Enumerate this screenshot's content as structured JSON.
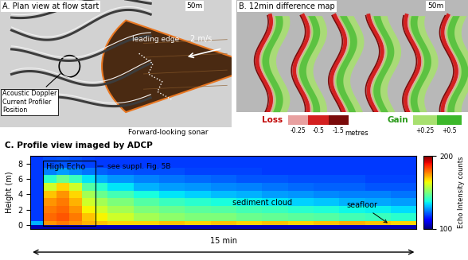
{
  "panel_a": {
    "title": "A. Plan view at flow start",
    "scale_bar": "50m",
    "leading_edge": "leading edge",
    "speed": "2 m/s",
    "adcp_label": "Acoustic Doppler\nCurrent Profiler\nPosition",
    "sonar_label": "Forward-looking sonar"
  },
  "panel_b": {
    "title": "B. 12min difference map",
    "scale_bar": "50m",
    "key": {
      "loss": {
        "label": "Loss",
        "values": [
          -0.25,
          -0.5,
          -1.5
        ],
        "colors": [
          "#e8a0a0",
          "#d42020",
          "#7a0a0a"
        ]
      },
      "unit": "metres",
      "gain": {
        "label": "Gain",
        "values": [
          {
            "value": 0.25,
            "label": "+0.25"
          },
          {
            "value": 0.5,
            "label": "+0.5"
          }
        ],
        "colors": [
          "#a8e070",
          "#3cb82a"
        ]
      }
    }
  },
  "chart_data": {
    "type": "heatmap",
    "title": "C. Profile view imaged by ADCP",
    "ylabel": "Height (m)",
    "xlim": [
      0,
      15
    ],
    "ylim": [
      -0.5,
      9
    ],
    "yticks": [
      0,
      2,
      4,
      6,
      8
    ],
    "tick_labels": "y",
    "x_edges": [
      0,
      0.5,
      1,
      1.5,
      2,
      2.5,
      3,
      4,
      5,
      6,
      7,
      8,
      9,
      10,
      11,
      12,
      13,
      14,
      15
    ],
    "y_edges": [
      -0.5,
      0,
      0.5,
      1.5,
      2.5,
      3.5,
      4.5,
      5.5,
      6.5,
      7.5,
      9
    ],
    "cells": [
      [
        105,
        105,
        105,
        105,
        105,
        105,
        105,
        105,
        105,
        105,
        105,
        105,
        105,
        105,
        105,
        105,
        105,
        105
      ],
      [
        130,
        175,
        178,
        175,
        172,
        170,
        168,
        168,
        170,
        168,
        170,
        168,
        170,
        168,
        170,
        172,
        170,
        168
      ],
      [
        118,
        180,
        182,
        178,
        170,
        165,
        160,
        155,
        152,
        150,
        150,
        148,
        147,
        146,
        145,
        143,
        142,
        140
      ],
      [
        118,
        178,
        180,
        175,
        165,
        160,
        155,
        150,
        148,
        146,
        145,
        143,
        142,
        140,
        139,
        137,
        136,
        134
      ],
      [
        118,
        175,
        178,
        172,
        160,
        155,
        150,
        145,
        142,
        140,
        138,
        136,
        135,
        133,
        132,
        130,
        129,
        128
      ],
      [
        118,
        170,
        175,
        168,
        155,
        148,
        143,
        138,
        135,
        133,
        131,
        130,
        128,
        127,
        126,
        125,
        125,
        124
      ],
      [
        118,
        160,
        168,
        160,
        145,
        140,
        135,
        130,
        128,
        127,
        126,
        125,
        124,
        123,
        122,
        122,
        121,
        121
      ],
      [
        118,
        140,
        148,
        142,
        135,
        130,
        127,
        125,
        124,
        123,
        122,
        121,
        121,
        120,
        120,
        120,
        119,
        119
      ],
      [
        118,
        125,
        128,
        126,
        124,
        122,
        121,
        120,
        120,
        119,
        119,
        119,
        118,
        118,
        118,
        118,
        118,
        118
      ],
      [
        118,
        120,
        121,
        120,
        119,
        118,
        118,
        118,
        118,
        118,
        118,
        118,
        118,
        118,
        118,
        118,
        118,
        118
      ]
    ],
    "colorbar": {
      "label": "Echo Intensity counts",
      "range": [
        100,
        200
      ],
      "ticks": [
        100,
        200
      ]
    },
    "annotations": {
      "high_echo": "High Echo",
      "suppl": "see suppl. Fig. 5B",
      "cloud": "sediment cloud",
      "seafloor": "seafloor",
      "duration": "15 min"
    }
  }
}
